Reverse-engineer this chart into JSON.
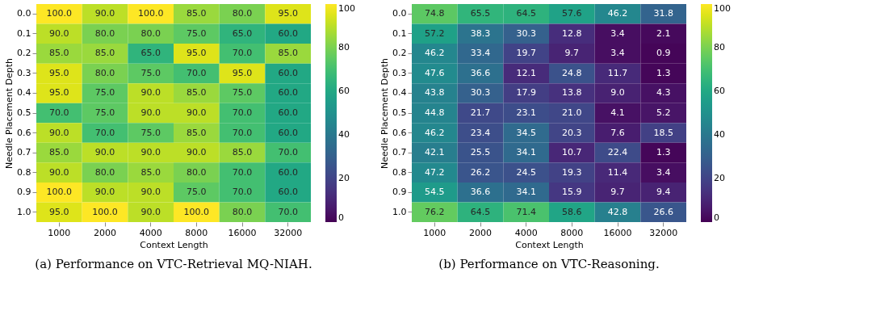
{
  "chart_data": [
    {
      "type": "heatmap",
      "xlabel": "Context Length",
      "ylabel": "Needle Placement Depth",
      "categories": [
        "1000",
        "2000",
        "4000",
        "8000",
        "16000",
        "32000"
      ],
      "y_categories": [
        "0.0",
        "0.1",
        "0.2",
        "0.3",
        "0.4",
        "0.5",
        "0.6",
        "0.7",
        "0.8",
        "0.9",
        "1.0"
      ],
      "cells": [
        [
          100,
          90,
          100,
          85,
          80,
          95
        ],
        [
          90,
          80,
          80,
          75,
          65,
          60
        ],
        [
          85,
          85,
          65,
          95,
          70,
          85
        ],
        [
          95,
          80,
          75,
          70,
          95,
          60
        ],
        [
          95,
          75,
          90,
          85,
          75,
          60
        ],
        [
          70,
          75,
          90,
          90,
          70,
          60
        ],
        [
          90,
          70,
          75,
          85,
          70,
          60
        ],
        [
          85,
          90,
          90,
          90,
          85,
          70
        ],
        [
          90,
          80,
          85,
          80,
          70,
          60
        ],
        [
          100,
          90,
          90,
          75,
          70,
          60
        ],
        [
          95,
          100,
          90,
          100,
          80,
          70
        ]
      ],
      "cell_labels": [
        [
          "100.0",
          "90.0",
          "100.0",
          "85.0",
          "80.0",
          "95.0"
        ],
        [
          "90.0",
          "80.0",
          "80.0",
          "75.0",
          "65.0",
          "60.0"
        ],
        [
          "85.0",
          "85.0",
          "65.0",
          "95.0",
          "70.0",
          "85.0"
        ],
        [
          "95.0",
          "80.0",
          "75.0",
          "70.0",
          "95.0",
          "60.0"
        ],
        [
          "95.0",
          "75.0",
          "90.0",
          "85.0",
          "75.0",
          "60.0"
        ],
        [
          "70.0",
          "75.0",
          "90.0",
          "90.0",
          "70.0",
          "60.0"
        ],
        [
          "90.0",
          "70.0",
          "75.0",
          "85.0",
          "70.0",
          "60.0"
        ],
        [
          "85.0",
          "90.0",
          "90.0",
          "90.0",
          "85.0",
          "70.0"
        ],
        [
          "90.0",
          "80.0",
          "85.0",
          "80.0",
          "70.0",
          "60.0"
        ],
        [
          "100.0",
          "90.0",
          "90.0",
          "75.0",
          "70.0",
          "60.0"
        ],
        [
          "95.0",
          "100.0",
          "90.0",
          "100.0",
          "80.0",
          "70.0"
        ]
      ],
      "clim": [
        0,
        100
      ],
      "cticks": [
        0,
        20,
        40,
        60,
        80,
        100
      ],
      "annotations": [
        "(a) Performance on VTC-Retrieval MQ-NIAH."
      ]
    },
    {
      "type": "heatmap",
      "xlabel": "Context Length",
      "ylabel": "Needle Placement Depth",
      "categories": [
        "1000",
        "2000",
        "4000",
        "8000",
        "16000",
        "32000"
      ],
      "y_categories": [
        "0.0",
        "0.1",
        "0.2",
        "0.3",
        "0.4",
        "0.5",
        "0.6",
        "0.7",
        "0.8",
        "0.9",
        "1.0"
      ],
      "cells": [
        [
          74.8,
          65.5,
          64.5,
          57.6,
          46.2,
          31.8
        ],
        [
          57.2,
          38.3,
          30.3,
          12.8,
          3.4,
          2.1
        ],
        [
          46.2,
          33.4,
          19.7,
          9.7,
          3.4,
          0.9
        ],
        [
          47.6,
          36.6,
          12.1,
          24.8,
          11.7,
          1.3
        ],
        [
          43.8,
          30.3,
          17.9,
          13.8,
          9.0,
          4.3
        ],
        [
          44.8,
          21.7,
          23.1,
          21.0,
          4.1,
          5.2
        ],
        [
          46.2,
          23.4,
          34.5,
          20.3,
          7.6,
          18.5
        ],
        [
          42.1,
          25.5,
          34.1,
          10.7,
          22.4,
          1.3
        ],
        [
          47.2,
          26.2,
          24.5,
          19.3,
          11.4,
          3.4
        ],
        [
          54.5,
          36.6,
          34.1,
          15.9,
          9.7,
          9.4
        ],
        [
          76.2,
          64.5,
          71.4,
          58.6,
          42.8,
          26.6
        ]
      ],
      "cell_labels": [
        [
          "74.8",
          "65.5",
          "64.5",
          "57.6",
          "46.2",
          "31.8"
        ],
        [
          "57.2",
          "38.3",
          "30.3",
          "12.8",
          "3.4",
          "2.1"
        ],
        [
          "46.2",
          "33.4",
          "19.7",
          "9.7",
          "3.4",
          "0.9"
        ],
        [
          "47.6",
          "36.6",
          "12.1",
          "24.8",
          "11.7",
          "1.3"
        ],
        [
          "43.8",
          "30.3",
          "17.9",
          "13.8",
          "9.0",
          "4.3"
        ],
        [
          "44.8",
          "21.7",
          "23.1",
          "21.0",
          "4.1",
          "5.2"
        ],
        [
          "46.2",
          "23.4",
          "34.5",
          "20.3",
          "7.6",
          "18.5"
        ],
        [
          "42.1",
          "25.5",
          "34.1",
          "10.7",
          "22.4",
          "1.3"
        ],
        [
          "47.2",
          "26.2",
          "24.5",
          "19.3",
          "11.4",
          "3.4"
        ],
        [
          "54.5",
          "36.6",
          "34.1",
          "15.9",
          "9.7",
          "9.4"
        ],
        [
          "76.2",
          "64.5",
          "71.4",
          "58.6",
          "42.8",
          "26.6"
        ]
      ],
      "clim": [
        0,
        100
      ],
      "cticks": [
        0,
        20,
        40,
        60,
        80,
        100
      ],
      "annotations": [
        "(b) Performance on VTC-Reasoning."
      ]
    }
  ]
}
